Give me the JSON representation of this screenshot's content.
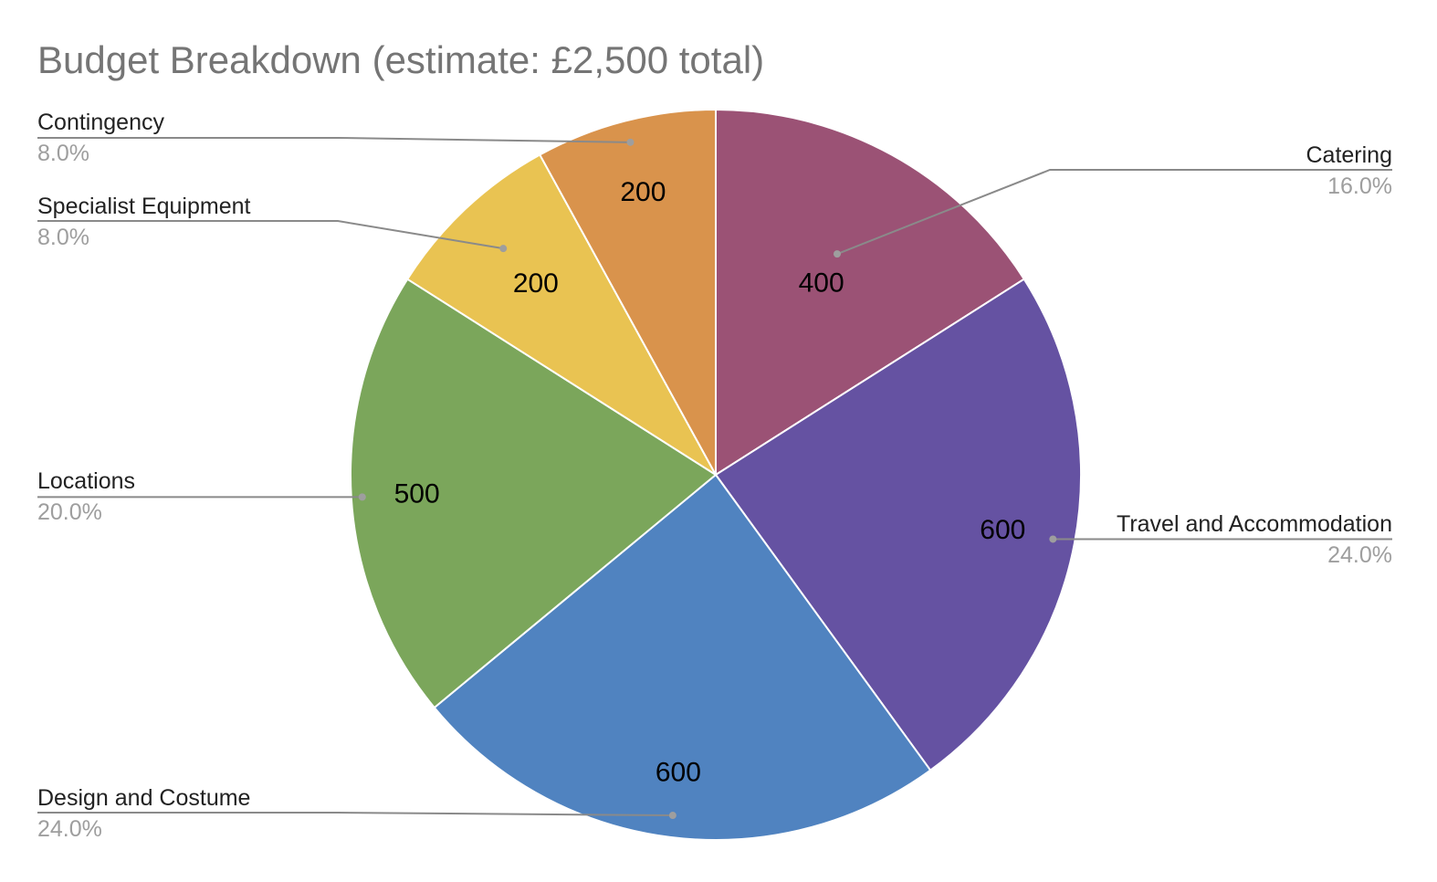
{
  "chart_data": {
    "type": "pie",
    "title": "Budget Breakdown (estimate: £2,500 total)",
    "start_angle_deg": 0,
    "direction": "clockwise",
    "slices": [
      {
        "label": "Catering",
        "value": 400,
        "value_text": "400",
        "percent_text": "16.0%",
        "color": "#9b5275"
      },
      {
        "label": "Travel and Accommodation",
        "value": 600,
        "value_text": "600",
        "percent_text": "24.0%",
        "color": "#6552a2"
      },
      {
        "label": "Design and Costume",
        "value": 600,
        "value_text": "600",
        "percent_text": "24.0%",
        "color": "#5083c0"
      },
      {
        "label": "Locations",
        "value": 500,
        "value_text": "500",
        "percent_text": "20.0%",
        "color": "#7ba65b"
      },
      {
        "label": "Specialist Equipment",
        "value": 200,
        "value_text": "200",
        "percent_text": "8.0%",
        "color": "#e9c352"
      },
      {
        "label": "Contingency",
        "value": 200,
        "value_text": "200",
        "percent_text": "8.0%",
        "color": "#d9934c"
      }
    ]
  }
}
